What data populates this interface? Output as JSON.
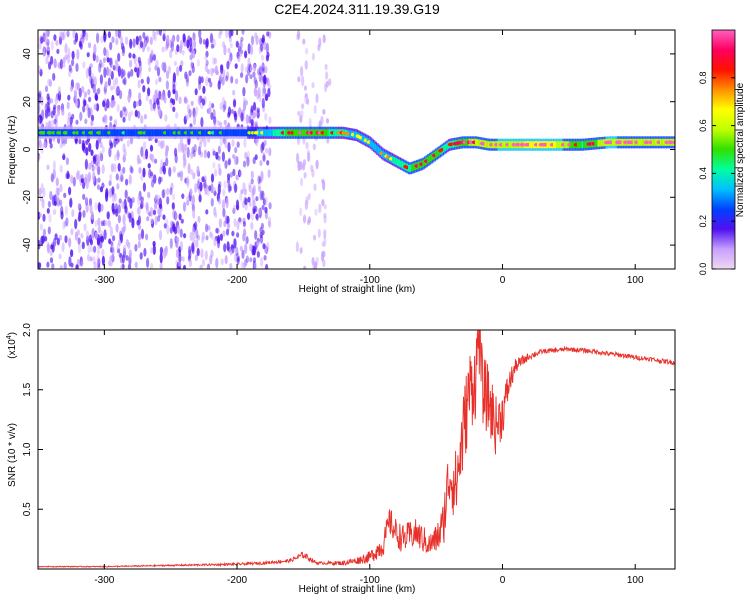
{
  "figure": {
    "title": "C2E4.2024.311.19.39.G19"
  },
  "chart_data": [
    {
      "type": "heatmap",
      "xlabel": "Height of straight line (km)",
      "ylabel": "Frequency (Hz)",
      "xlim": [
        -350,
        130
      ],
      "ylim": [
        -50,
        50
      ],
      "xticks": [
        -300,
        -200,
        -100,
        0,
        100
      ],
      "yticks": [
        -40,
        -20,
        0,
        20,
        40
      ],
      "grid": false,
      "colorbar": {
        "label": "Normalized spectral amplitude",
        "range": [
          0,
          1
        ],
        "ticks": [
          0.0,
          0.2,
          0.4,
          0.6,
          0.8
        ],
        "colormap": [
          "#f0d8f0",
          "#c8a0ff",
          "#5010f0",
          "#0040ff",
          "#00c0ff",
          "#00ffa0",
          "#30e000",
          "#c0ff00",
          "#ffff00",
          "#ff9000",
          "#ff1000",
          "#ff0060",
          "#ff60c0"
        ]
      },
      "ridge": {
        "x": [
          -350,
          -300,
          -250,
          -200,
          -180,
          -160,
          -140,
          -120,
          -110,
          -100,
          -90,
          -80,
          -70,
          -60,
          -50,
          -40,
          -30,
          -20,
          -10,
          0,
          20,
          40,
          60,
          80,
          100,
          130
        ],
        "y": [
          7,
          7,
          7,
          7,
          7,
          7,
          7,
          7,
          6,
          3,
          -2,
          -5,
          -8,
          -6,
          -2,
          2,
          3,
          3,
          2,
          2,
          2,
          2,
          2,
          3,
          3,
          3
        ],
        "amplitude": [
          0.3,
          0.3,
          0.3,
          0.3,
          0.45,
          0.7,
          0.75,
          0.55,
          0.5,
          0.45,
          0.5,
          0.55,
          0.65,
          0.7,
          0.7,
          0.55,
          0.75,
          0.8,
          0.8,
          0.85,
          0.9,
          0.9,
          0.65,
          0.85,
          0.8,
          0.8
        ]
      },
      "noise_regions": [
        {
          "x": [
            -350,
            -175
          ],
          "intensity": 0.28
        },
        {
          "x": [
            -155,
            -130
          ],
          "intensity": 0.12
        }
      ]
    },
    {
      "type": "line",
      "xlabel": "Height of straight line (km)",
      "ylabel": "SNR (10 * v/v)",
      "scale_label": "(x10",
      "scale_exponent": "4",
      "xlim": [
        -350,
        130
      ],
      "ylim": [
        0,
        2.0
      ],
      "xticks": [
        -300,
        -200,
        -100,
        0,
        100
      ],
      "yticks": [
        0.5,
        1.0,
        1.5,
        2.0
      ],
      "grid": false,
      "color": "#e8302a",
      "series": [
        {
          "x": [
            -350,
            -300,
            -250,
            -200,
            -180,
            -160,
            -150,
            -140,
            -120,
            -110,
            -100,
            -90,
            -85,
            -80,
            -75,
            -70,
            -65,
            -60,
            -55,
            -50,
            -45,
            -40,
            -35,
            -30,
            -25,
            -20,
            -18,
            -15,
            -10,
            -5,
            0,
            5,
            10,
            20,
            30,
            40,
            50,
            60,
            70,
            80,
            90,
            100,
            110,
            120,
            130
          ],
          "y": [
            0.02,
            0.02,
            0.03,
            0.04,
            0.05,
            0.07,
            0.12,
            0.05,
            0.05,
            0.07,
            0.1,
            0.2,
            0.4,
            0.3,
            0.25,
            0.28,
            0.3,
            0.25,
            0.2,
            0.25,
            0.35,
            0.8,
            0.7,
            1.1,
            1.5,
            1.6,
            2.0,
            1.5,
            1.4,
            1.2,
            1.3,
            1.55,
            1.7,
            1.78,
            1.82,
            1.83,
            1.84,
            1.83,
            1.82,
            1.8,
            1.79,
            1.77,
            1.76,
            1.74,
            1.73
          ]
        }
      ],
      "noise_amplitude": [
        0.004,
        0.004,
        0.006,
        0.01,
        0.012,
        0.015,
        0.03,
        0.01,
        0.02,
        0.03,
        0.05,
        0.1,
        0.12,
        0.12,
        0.12,
        0.12,
        0.12,
        0.12,
        0.1,
        0.12,
        0.2,
        0.3,
        0.3,
        0.35,
        0.35,
        0.35,
        0.3,
        0.3,
        0.3,
        0.25,
        0.2,
        0.12,
        0.06,
        0.03,
        0.02,
        0.02,
        0.02,
        0.02,
        0.02,
        0.02,
        0.02,
        0.02,
        0.02,
        0.02,
        0.02
      ]
    }
  ]
}
